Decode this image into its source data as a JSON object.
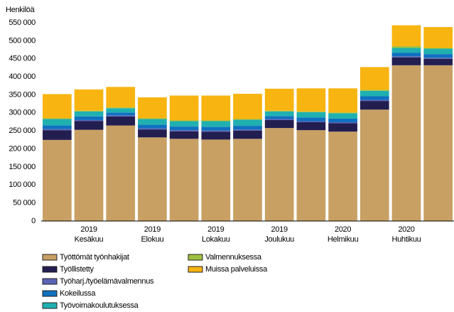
{
  "chart_data": {
    "type": "stacked_bar",
    "y_label": "Henkilöä",
    "categories": [
      null,
      "2019 Kesäkuu",
      null,
      "2019 Elokuu",
      null,
      "2019 Lokakuu",
      null,
      "2019 Joulukuu",
      null,
      "2020 Helmikuu",
      null,
      "2020 Huhtikuu",
      null
    ],
    "series": [
      {
        "name": "Työttömät työnhakijat",
        "color": "#c8a064",
        "values": [
          225000,
          253000,
          265000,
          232000,
          228000,
          226000,
          228000,
          258000,
          252000,
          248000,
          309000,
          432000,
          432000
        ]
      },
      {
        "name": "Työllistetty",
        "color": "#221e50",
        "values": [
          27000,
          24000,
          25000,
          22000,
          21000,
          22000,
          23000,
          22000,
          22000,
          23000,
          24000,
          22000,
          18000
        ]
      },
      {
        "name": "Työharj./työelämävalmennus",
        "color": "#5a64b4",
        "values": [
          3000,
          3000,
          3000,
          3000,
          3000,
          3000,
          3000,
          3000,
          3000,
          3000,
          3000,
          3000,
          3000
        ]
      },
      {
        "name": "Kokeilussa",
        "color": "#1070c0",
        "values": [
          10000,
          10000,
          8000,
          10000,
          10000,
          10000,
          10000,
          8000,
          10000,
          10000,
          10000,
          10000,
          10000
        ]
      },
      {
        "name": "Työvoimakoulutuksessa",
        "color": "#20b0b0",
        "values": [
          18000,
          14000,
          12000,
          16000,
          15000,
          16000,
          17000,
          13000,
          15000,
          15000,
          15000,
          13000,
          15000
        ]
      },
      {
        "name": "Valmennuksessa",
        "color": "#a0c040",
        "values": [
          2000,
          2000,
          2000,
          2000,
          2000,
          2000,
          2000,
          2000,
          2000,
          2000,
          3000,
          5000,
          2000
        ]
      },
      {
        "name": "Muissa palveluissa",
        "color": "#f8b410",
        "values": [
          67000,
          59000,
          57000,
          58000,
          69000,
          69000,
          70000,
          61000,
          64000,
          67000,
          63000,
          58000,
          58000
        ]
      }
    ],
    "ylim": [
      0,
      550000
    ],
    "yticks": [
      0,
      {
        "value": 50000,
        "label": "50 000"
      },
      {
        "value": 100000,
        "label": "100 000"
      },
      {
        "value": 150000,
        "label": "150 000"
      },
      {
        "value": 200000,
        "label": "200 000"
      },
      {
        "value": 250000,
        "label": "250 000"
      },
      {
        "value": 300000,
        "label": "300 000"
      },
      {
        "value": 350000,
        "label": "350 000"
      },
      {
        "value": 400000,
        "label": "400 000"
      },
      {
        "value": 450000,
        "label": "450 000"
      },
      {
        "value": 500000,
        "label": "500 000"
      },
      {
        "value": 550000,
        "label": "550 000"
      }
    ],
    "grid": false
  }
}
